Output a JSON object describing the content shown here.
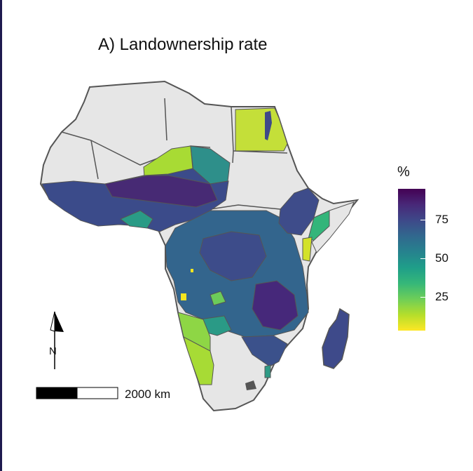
{
  "title": "A) Landownership rate",
  "legend": {
    "title": "%",
    "ticks": [
      {
        "label": "75",
        "value": 75
      },
      {
        "label": "50",
        "value": 50
      },
      {
        "label": "25",
        "value": 25
      }
    ],
    "range": [
      3,
      95
    ],
    "palette": [
      "#fde725",
      "#b5de2b",
      "#6ece58",
      "#35b779",
      "#1f9e89",
      "#26828e",
      "#31688e",
      "#3e4989",
      "#482878",
      "#440154"
    ]
  },
  "scale_bar": {
    "label": "2000 km"
  },
  "north_arrow": {
    "label": "N"
  },
  "colors": {
    "no_data": "#e6e6e6",
    "border": "#555555"
  }
}
